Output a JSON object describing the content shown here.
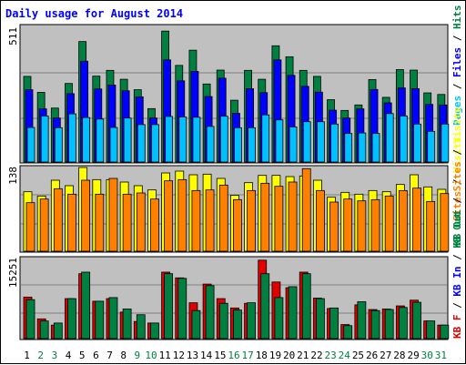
{
  "title": "Daily usage for August 2014",
  "colors": {
    "pages": "#00C0FF",
    "files": "#0000FF",
    "hits": "#008040",
    "visits": "#FFFF00",
    "sites": "#FF8000",
    "kbin": "#E00000",
    "kbout": "#008040",
    "weekday_label": "#000000",
    "weekend_label": "#008040",
    "panel_bg": "#C0C0C0"
  },
  "chart_data": [
    {
      "type": "bar",
      "name_labels": [
        "Pages",
        "Files",
        "Hits"
      ],
      "ymax_label": "511",
      "ylim": [
        0,
        511
      ],
      "categories": [
        "1",
        "2",
        "3",
        "4",
        "5",
        "6",
        "7",
        "8",
        "9",
        "10",
        "11",
        "12",
        "13",
        "14",
        "15",
        "16",
        "17",
        "18",
        "19",
        "20",
        "21",
        "22",
        "23",
        "24",
        "25",
        "26",
        "27",
        "28",
        "29",
        "30",
        "31"
      ],
      "series": [
        {
          "name": "Hits",
          "values": [
            327,
            266,
            206,
            300,
            460,
            328,
            350,
            316,
            276,
            204,
            500,
            369,
            427,
            298,
            351,
            236,
            350,
            316,
            444,
            402,
            350,
            327,
            238,
            197,
            218,
            315,
            247,
            353,
            351,
            264,
            258
          ]
        },
        {
          "name": "Files",
          "values": [
            276,
            203,
            168,
            261,
            385,
            279,
            294,
            272,
            249,
            168,
            390,
            310,
            346,
            250,
            320,
            186,
            280,
            265,
            390,
            331,
            289,
            267,
            198,
            168,
            203,
            277,
            226,
            283,
            280,
            220,
            218
          ]
        },
        {
          "name": "Pages",
          "values": [
            132,
            176,
            131,
            184,
            170,
            164,
            132,
            168,
            143,
            143,
            174,
            172,
            171,
            136,
            175,
            131,
            131,
            180,
            161,
            134,
            154,
            154,
            145,
            109,
            111,
            109,
            185,
            176,
            145,
            117,
            145
          ]
        }
      ]
    },
    {
      "type": "bar",
      "name_labels": [
        "Visits",
        "Sites",
        "KB Out"
      ],
      "ymax_label": "138",
      "ylim": [
        0,
        138
      ],
      "categories": [
        "1",
        "2",
        "3",
        "4",
        "5",
        "6",
        "7",
        "8",
        "9",
        "10",
        "11",
        "12",
        "13",
        "14",
        "15",
        "16",
        "17",
        "18",
        "19",
        "20",
        "21",
        "22",
        "23",
        "24",
        "25",
        "26",
        "27",
        "28",
        "29",
        "30",
        "31"
      ],
      "series": [
        {
          "name": "Visits",
          "values": [
            98,
            91,
            117,
            108,
            138,
            118,
            118,
            114,
            108,
            101,
            129,
            132,
            126,
            127,
            120,
            92,
            113,
            125,
            125,
            123,
            124,
            117,
            89,
            97,
            94,
            100,
            98,
            110,
            126,
            106,
            102
          ]
        },
        {
          "name": "Sites",
          "values": [
            80,
            86,
            103,
            94,
            117,
            94,
            120,
            94,
            96,
            86,
            116,
            118,
            100,
            101,
            109,
            85,
            100,
            112,
            107,
            114,
            136,
            100,
            81,
            86,
            83,
            85,
            91,
            100,
            104,
            82,
            95
          ]
        }
      ]
    },
    {
      "type": "bar",
      "name_labels": [
        "KB F",
        "KB In",
        "KB Out"
      ],
      "ymax_label": "15251",
      "ylim": [
        0,
        15251
      ],
      "categories": [
        "1",
        "2",
        "3",
        "4",
        "5",
        "6",
        "7",
        "8",
        "9",
        "10",
        "11",
        "12",
        "13",
        "14",
        "15",
        "16",
        "17",
        "18",
        "19",
        "20",
        "21",
        "22",
        "23",
        "24",
        "25",
        "26",
        "27",
        "28",
        "29",
        "30",
        "31"
      ],
      "series": [
        {
          "name": "KB In",
          "values": [
            8000,
            3800,
            2600,
            7700,
            12500,
            7200,
            7700,
            5100,
            3300,
            3000,
            12800,
            11700,
            6900,
            10500,
            7700,
            5900,
            6800,
            15100,
            10900,
            9800,
            12800,
            7800,
            5800,
            2700,
            6500,
            5600,
            5700,
            6300,
            7400,
            3400,
            2600
          ]
        },
        {
          "name": "KB Out",
          "values": [
            7500,
            3400,
            3000,
            7700,
            12800,
            7200,
            7900,
            5700,
            4600,
            3000,
            12500,
            11600,
            5400,
            10200,
            6800,
            5500,
            6900,
            12500,
            7900,
            10000,
            12500,
            7700,
            5900,
            2500,
            7100,
            5400,
            5600,
            6000,
            7000,
            3400,
            2600
          ]
        }
      ]
    }
  ],
  "x_labels": [
    {
      "text": "1",
      "weekend": false
    },
    {
      "text": "2",
      "weekend": true
    },
    {
      "text": "3",
      "weekend": true
    },
    {
      "text": "4",
      "weekend": false
    },
    {
      "text": "5",
      "weekend": false
    },
    {
      "text": "6",
      "weekend": false
    },
    {
      "text": "7",
      "weekend": false
    },
    {
      "text": "8",
      "weekend": false
    },
    {
      "text": "9",
      "weekend": true
    },
    {
      "text": "10",
      "weekend": true
    },
    {
      "text": "11",
      "weekend": false
    },
    {
      "text": "12",
      "weekend": false
    },
    {
      "text": "13",
      "weekend": false
    },
    {
      "text": "14",
      "weekend": false
    },
    {
      "text": "15",
      "weekend": false
    },
    {
      "text": "16",
      "weekend": true
    },
    {
      "text": "17",
      "weekend": true
    },
    {
      "text": "18",
      "weekend": false
    },
    {
      "text": "19",
      "weekend": false
    },
    {
      "text": "20",
      "weekend": false
    },
    {
      "text": "21",
      "weekend": false
    },
    {
      "text": "22",
      "weekend": false
    },
    {
      "text": "23",
      "weekend": true
    },
    {
      "text": "24",
      "weekend": true
    },
    {
      "text": "25",
      "weekend": false
    },
    {
      "text": "26",
      "weekend": false
    },
    {
      "text": "27",
      "weekend": false
    },
    {
      "text": "28",
      "weekend": false
    },
    {
      "text": "29",
      "weekend": false
    },
    {
      "text": "30",
      "weekend": true
    },
    {
      "text": "31",
      "weekend": true
    }
  ],
  "right_labels": {
    "panel1": [
      {
        "text": "Pages",
        "color": "#00C0FF"
      },
      {
        "text": " / ",
        "color": "#000000"
      },
      {
        "text": "Files",
        "color": "#0000FF"
      },
      {
        "text": " / ",
        "color": "#000000"
      },
      {
        "text": "Hits",
        "color": "#008040"
      }
    ],
    "panel2": [
      {
        "text": "Sites",
        "color": "#FF8000"
      },
      {
        "text": " / ",
        "color": "#000000"
      },
      {
        "text": "Visits",
        "color": "#FFFF00"
      }
    ],
    "panel3": [
      {
        "text": "KB F",
        "color": "#E00000"
      },
      {
        "text": " / ",
        "color": "#000000"
      },
      {
        "text": "KB In",
        "color": "#0000FF"
      },
      {
        "text": " / ",
        "color": "#000000"
      },
      {
        "text": "KB Out",
        "color": "#008040"
      }
    ]
  },
  "right_label_prefix2": "KB Out / "
}
